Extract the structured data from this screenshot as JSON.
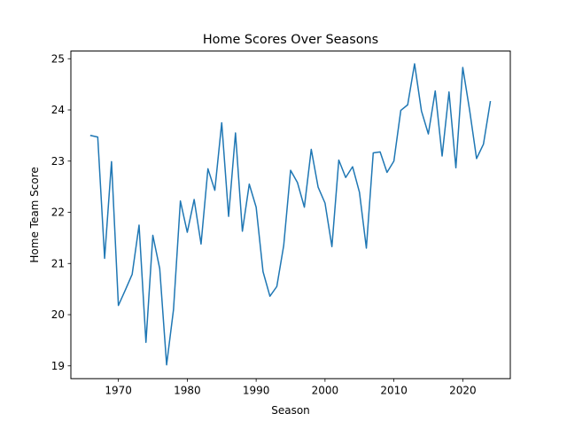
{
  "chart_data": {
    "type": "line",
    "title": "Home Scores Over Seasons",
    "xlabel": "Season",
    "ylabel": "Home Team Score",
    "xlim": [
      1963.1,
      2026.9
    ],
    "ylim": [
      18.75,
      25.15
    ],
    "xticks": [
      1970,
      1980,
      1990,
      2000,
      2010,
      2020
    ],
    "yticks": [
      19,
      20,
      21,
      22,
      23,
      24,
      25
    ],
    "grid": false,
    "legend": "none",
    "series": [
      {
        "color": "#1f77b4",
        "x": [
          1966,
          1967,
          1968,
          1969,
          1970,
          1971,
          1972,
          1973,
          1974,
          1975,
          1976,
          1977,
          1978,
          1979,
          1980,
          1981,
          1982,
          1983,
          1984,
          1985,
          1986,
          1987,
          1988,
          1989,
          1990,
          1991,
          1992,
          1993,
          1994,
          1995,
          1996,
          1997,
          1998,
          1999,
          2000,
          2001,
          2002,
          2003,
          2004,
          2005,
          2006,
          2007,
          2008,
          2009,
          2010,
          2011,
          2012,
          2013,
          2014,
          2015,
          2016,
          2017,
          2018,
          2019,
          2020,
          2021,
          2022,
          2023,
          2024
        ],
        "y": [
          23.5,
          23.47,
          21.1,
          22.99,
          20.18,
          20.48,
          20.79,
          21.75,
          19.46,
          21.55,
          20.9,
          19.02,
          20.1,
          22.22,
          21.61,
          22.25,
          21.38,
          22.85,
          22.43,
          23.75,
          21.92,
          23.55,
          21.63,
          22.55,
          22.1,
          20.84,
          20.36,
          20.55,
          21.35,
          22.82,
          22.58,
          22.1,
          23.23,
          22.49,
          22.18,
          21.33,
          23.02,
          22.68,
          22.89,
          22.39,
          21.3,
          23.16,
          23.18,
          22.78,
          23.0,
          23.99,
          24.1,
          24.9,
          23.98,
          23.53,
          24.37,
          23.1,
          24.35,
          22.87,
          24.83,
          23.99,
          23.05,
          23.33,
          24.16
        ]
      }
    ]
  }
}
